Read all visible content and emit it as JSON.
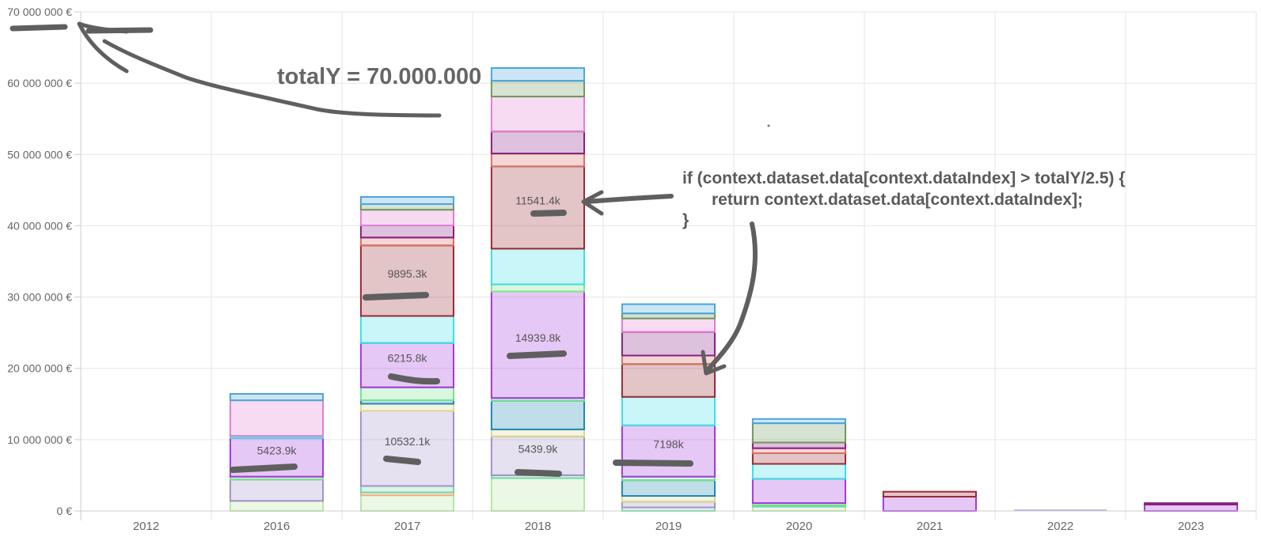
{
  "chart_data": {
    "type": "bar",
    "stacked": true,
    "categories": [
      "2012",
      "2016",
      "2017",
      "2018",
      "2019",
      "2020",
      "2021",
      "2022",
      "2023"
    ],
    "ylim": [
      0,
      70000000
    ],
    "yticks": [
      {
        "value": 0,
        "label": "0 €"
      },
      {
        "value": 10000000,
        "label": "10 000 000 €"
      },
      {
        "value": 20000000,
        "label": "20 000 000 €"
      },
      {
        "value": 30000000,
        "label": "30 000 000 €"
      },
      {
        "value": 40000000,
        "label": "40 000 000 €"
      },
      {
        "value": 50000000,
        "label": "50 000 000 €"
      },
      {
        "value": 60000000,
        "label": "60 000 000 €"
      },
      {
        "value": 70000000,
        "label": "70 000 000 €"
      }
    ],
    "grid": true,
    "series": [
      {
        "color": "#b7e6a3",
        "values": [
          0,
          1400000,
          2200000,
          4600000,
          0,
          600000,
          0,
          0,
          0
        ]
      },
      {
        "color": "#f4b183",
        "values": [
          0,
          0,
          400000,
          0,
          0,
          0,
          0,
          0,
          0
        ]
      },
      {
        "color": "#72d6a8",
        "values": [
          0,
          0,
          900000,
          400000,
          500000,
          200000,
          0,
          0,
          0
        ]
      },
      {
        "color": "#a392c8",
        "values": [
          0,
          3000000,
          10532100,
          5439900,
          800000,
          0,
          0,
          0,
          0
        ]
      },
      {
        "color": "#d9d98e",
        "values": [
          0,
          0,
          1000000,
          1000000,
          800000,
          0,
          0,
          0,
          0
        ]
      },
      {
        "color": "#1e88b5",
        "values": [
          0,
          0,
          500000,
          4000000,
          2200000,
          0,
          0,
          0,
          0
        ]
      },
      {
        "color": "#76e08a",
        "values": [
          0,
          400000,
          1800000,
          400000,
          500000,
          300000,
          0,
          0,
          0
        ]
      },
      {
        "color": "#a538dd",
        "values": [
          0,
          5423900,
          6215800,
          14939800,
          7198000,
          3400000,
          2000000,
          0,
          900000
        ]
      },
      {
        "color": "#7ee58b",
        "values": [
          0,
          0,
          0,
          1000000,
          0,
          0,
          0,
          0,
          0
        ]
      },
      {
        "color": "#3cdfe6",
        "values": [
          0,
          300000,
          3800000,
          5000000,
          4000000,
          2100000,
          0,
          0,
          0
        ]
      },
      {
        "color": "#9b2a35",
        "values": [
          0,
          0,
          9895300,
          11541400,
          4600000,
          1500000,
          700000,
          0,
          0
        ]
      },
      {
        "color": "#d86f67",
        "values": [
          0,
          0,
          1100000,
          1800000,
          1200000,
          700000,
          0,
          0,
          0
        ]
      },
      {
        "color": "#8a1f82",
        "values": [
          0,
          0,
          1700000,
          3100000,
          3300000,
          800000,
          0,
          0,
          200000
        ]
      },
      {
        "color": "#e07fd0",
        "values": [
          0,
          5000000,
          2200000,
          4900000,
          1900000,
          0,
          0,
          0,
          0
        ]
      },
      {
        "color": "#6e9a5c",
        "values": [
          0,
          0,
          800000,
          2200000,
          700000,
          2700000,
          0,
          0,
          0
        ]
      },
      {
        "color": "#4aa6df",
        "values": [
          0,
          900000,
          1000000,
          1800000,
          1300000,
          600000,
          0,
          0,
          0
        ]
      }
    ],
    "data_labels": [
      {
        "category": "2016",
        "series_index": 7,
        "label": "5423.9k"
      },
      {
        "category": "2017",
        "series_index": 3,
        "label": "10532.1k"
      },
      {
        "category": "2017",
        "series_index": 7,
        "label": "6215.8k"
      },
      {
        "category": "2017",
        "series_index": 10,
        "label": "9895.3k"
      },
      {
        "category": "2018",
        "series_index": 3,
        "label": "5439.9k"
      },
      {
        "category": "2018",
        "series_index": 7,
        "label": "14939.8k"
      },
      {
        "category": "2018",
        "series_index": 10,
        "label": "11541.4k"
      },
      {
        "category": "2019",
        "series_index": 7,
        "label": "7198k"
      }
    ],
    "annotations": {
      "total_text": "totalY = 70.000.000",
      "code_lines": [
        "if (context.dataset.data[context.dataIndex] > totalY/2.5) {",
        "return context.dataset.data[context.dataIndex];",
        "}"
      ]
    }
  }
}
